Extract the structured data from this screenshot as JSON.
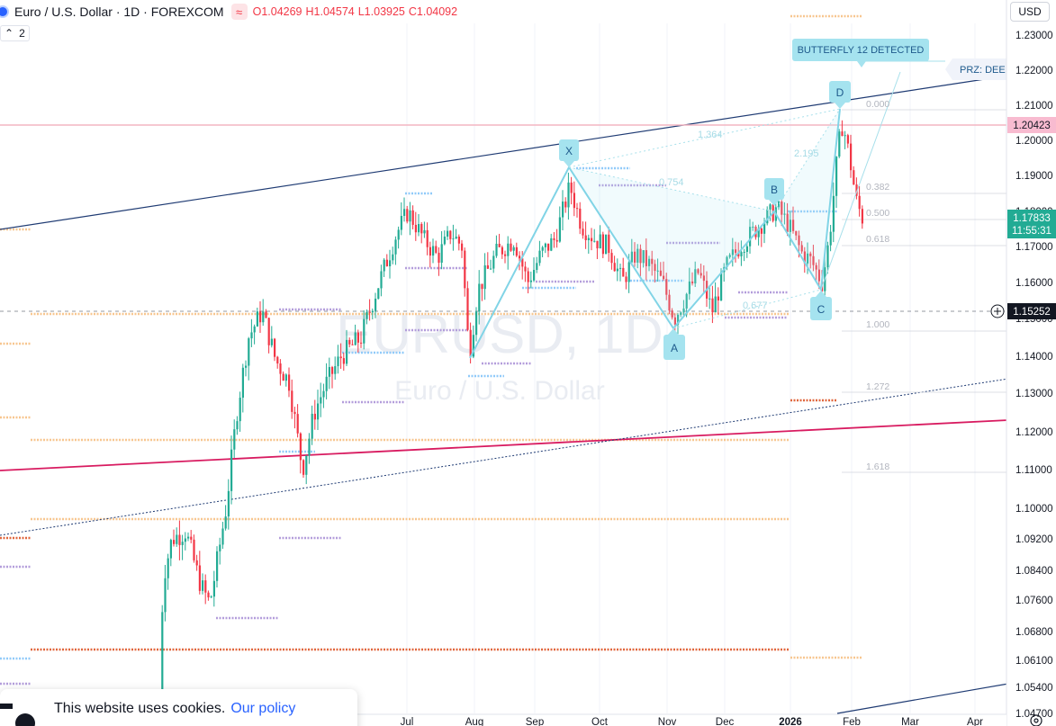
{
  "header": {
    "symbol": "Euro / U.S. Dollar · 1D · FOREXCOM",
    "badge": "≈",
    "open": "O1.04269",
    "high": "H1.04574",
    "low": "L1.03925",
    "close": "C1.04092"
  },
  "indicators_toggle": {
    "count": "2"
  },
  "currency_button": "USD",
  "watermark": {
    "symbol": "EURUSD, 1D",
    "name": "Euro / U.S. Dollar"
  },
  "cookie_banner": {
    "text": "This website uses cookies.",
    "link": "Our policy"
  },
  "colors": {
    "bull": "#22ab94",
    "bear": "#f23645",
    "pattern": "#81d4e6",
    "trendline": "#1f3b73",
    "pink_line": "#d81b60",
    "level_line": "#f4b6c2"
  },
  "chart_data": {
    "type": "candlestick",
    "title": "Euro / U.S. Dollar · 1D · FOREXCOM",
    "y_axis": {
      "ticks": [
        "1.23000",
        "1.22000",
        "1.21000",
        "1.20000",
        "1.19000",
        "1.18000",
        "1.17000",
        "1.16000",
        "1.15000",
        "1.14000",
        "1.13000",
        "1.12000",
        "1.11000",
        "1.10000",
        "1.09200",
        "1.08400",
        "1.07600",
        "1.06800",
        "1.06100",
        "1.05400",
        "1.04700"
      ],
      "range": [
        1.04,
        1.235
      ]
    },
    "x_axis": {
      "ticks": [
        "Jul",
        "Aug",
        "Sep",
        "Oct",
        "Nov",
        "Dec",
        "2026",
        "Feb",
        "Mar",
        "Apr"
      ]
    },
    "price_labels": [
      {
        "value": "1.20423",
        "kind": "horizontal-line"
      },
      {
        "value": "1.17833",
        "kind": "last-price"
      },
      {
        "value": "11:55:31",
        "kind": "countdown"
      },
      {
        "value": "1.15252",
        "kind": "crosshair"
      }
    ],
    "pattern": {
      "name": "BUTTERFLY 12 DETECTED",
      "prz_label": "PRZ: DEEP",
      "points": [
        {
          "label": "X",
          "date": "Sep",
          "price": 1.1918
        },
        {
          "label": "A",
          "date": "Nov",
          "price": 1.1468
        },
        {
          "label": "B",
          "date": "Jan",
          "price": 1.1808
        },
        {
          "label": "C",
          "date": "Jan",
          "price": 1.1588
        },
        {
          "label": "D",
          "date": "Feb",
          "price": 1.2082
        }
      ],
      "ratios": [
        "1.364",
        "0.754",
        "2.195",
        "0.677"
      ],
      "fib_levels": [
        "0.000",
        "0.382",
        "0.500",
        "0.618",
        "1.000",
        "1.272",
        "1.618"
      ]
    },
    "candles_description": "EURUSD daily candles rising from about 1.03 in early 2025 to about 1.208 in late January 2026, last close near 1.1783"
  }
}
